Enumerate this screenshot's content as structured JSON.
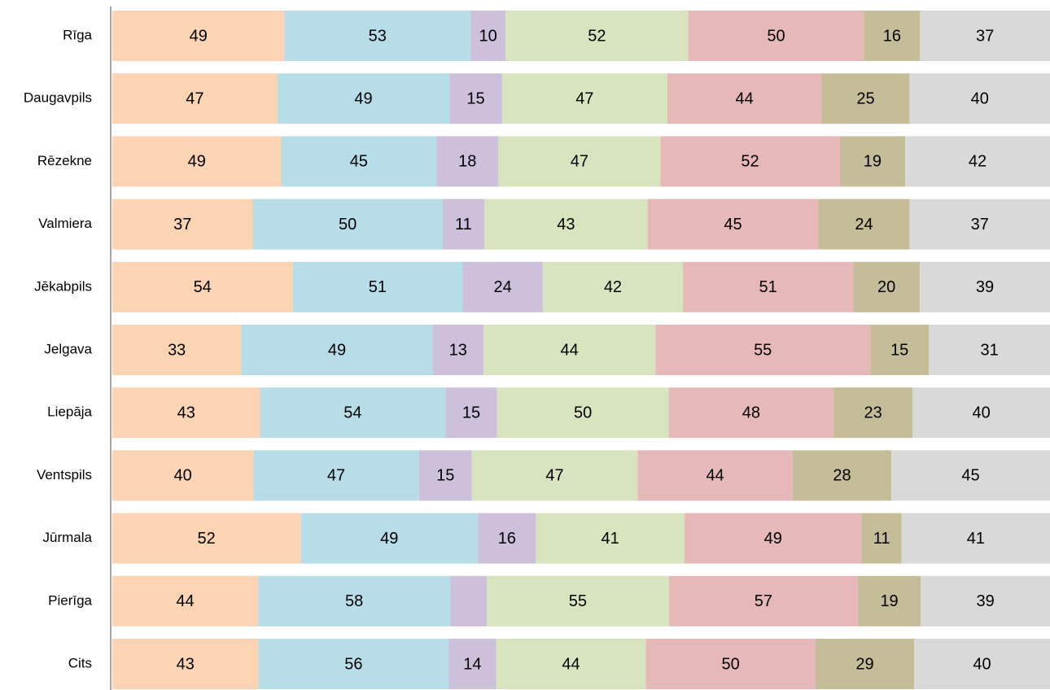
{
  "chart_data": {
    "type": "bar",
    "orientation": "horizontal",
    "stacked": "percent",
    "categories": [
      "Rīga",
      "Daugavpils",
      "Rēzekne",
      "Valmiera",
      "Jēkabpils",
      "Jelgava",
      "Liepāja",
      "Ventspils",
      "Jūrmala",
      "Pierīga",
      "Cits"
    ],
    "series": [
      {
        "color": "#fbd4b4",
        "values": [
          49,
          47,
          49,
          37,
          54,
          33,
          43,
          40,
          52,
          44,
          43
        ]
      },
      {
        "color": "#b7dde8",
        "values": [
          53,
          49,
          45,
          50,
          51,
          49,
          54,
          47,
          49,
          58,
          56
        ]
      },
      {
        "color": "#ccc0da",
        "values": [
          10,
          15,
          18,
          11,
          24,
          13,
          15,
          15,
          16,
          11,
          14
        ],
        "value_labels": [
          "10",
          "15",
          "18",
          "11",
          "24",
          "13",
          "15",
          "15",
          "16",
          null,
          "14"
        ]
      },
      {
        "color": "#d7e4bd",
        "values": [
          52,
          47,
          47,
          43,
          42,
          44,
          50,
          47,
          41,
          55,
          44
        ]
      },
      {
        "color": "#e6b9b8",
        "values": [
          50,
          44,
          52,
          45,
          51,
          55,
          48,
          44,
          49,
          57,
          50
        ]
      },
      {
        "color": "#c4bd97",
        "values": [
          16,
          25,
          19,
          24,
          20,
          15,
          23,
          28,
          11,
          19,
          29
        ]
      },
      {
        "color": "#d9d9d9",
        "values": [
          37,
          40,
          42,
          37,
          39,
          31,
          40,
          45,
          41,
          39,
          40
        ]
      }
    ]
  }
}
